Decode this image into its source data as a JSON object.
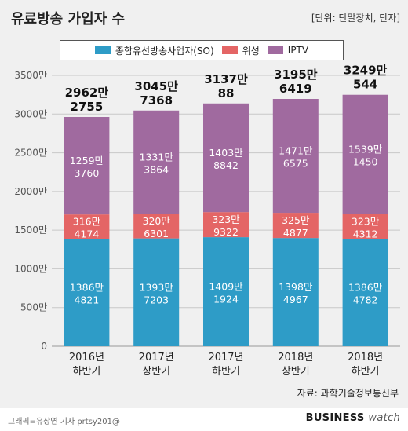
{
  "header": {
    "title": "유료방송 가입자 수",
    "unit": "[단위: 단말장치, 단자]"
  },
  "colors": {
    "so": "#2e9cc7",
    "satellite": "#e46565",
    "iptv": "#a06a9f",
    "grid": "#c8c8c8",
    "axis": "#999999"
  },
  "chart_data": {
    "type": "bar",
    "stacked": true,
    "categories": [
      [
        "2016년",
        "하반기"
      ],
      [
        "2017년",
        "상반기"
      ],
      [
        "2017년",
        "하반기"
      ],
      [
        "2018년",
        "상반기"
      ],
      [
        "2018년",
        "하반기"
      ]
    ],
    "series": [
      {
        "name": "종합유선방송사업자(SO)",
        "values": [
          13864821,
          13937203,
          14091924,
          13984967,
          13864782
        ],
        "labels": [
          [
            "1386만",
            "4821"
          ],
          [
            "1393만",
            "7203"
          ],
          [
            "1409만",
            "1924"
          ],
          [
            "1398만",
            "4967"
          ],
          [
            "1386만",
            "4782"
          ]
        ]
      },
      {
        "name": "위성",
        "values": [
          3164174,
          3206301,
          3239322,
          3254877,
          3234312
        ],
        "labels": [
          [
            "316만",
            "4174"
          ],
          [
            "320만",
            "6301"
          ],
          [
            "323만",
            "9322"
          ],
          [
            "325만",
            "4877"
          ],
          [
            "323만",
            "4312"
          ]
        ]
      },
      {
        "name": "IPTV",
        "values": [
          12593760,
          13313864,
          14038842,
          14716575,
          15391450
        ],
        "labels": [
          [
            "1259만",
            "3760"
          ],
          [
            "1331만",
            "3864"
          ],
          [
            "1403만",
            "8842"
          ],
          [
            "1471만",
            "6575"
          ],
          [
            "1539만",
            "1450"
          ]
        ]
      }
    ],
    "totals": [
      29622755,
      30457368,
      31370088,
      31956419,
      32490544
    ],
    "total_labels": [
      [
        "2962만",
        "2755"
      ],
      [
        "3045만",
        "7368"
      ],
      [
        "3137만",
        "88"
      ],
      [
        "3195만",
        "6419"
      ],
      [
        "3249만",
        "544"
      ]
    ],
    "ylim": [
      0,
      35000000
    ],
    "yticks": [
      0,
      5000000,
      10000000,
      15000000,
      20000000,
      25000000,
      30000000,
      35000000
    ],
    "ytick_labels": [
      "0",
      "500만",
      "1000만",
      "1500만",
      "2000만",
      "2500만",
      "3000만",
      "3500만"
    ],
    "grid": true,
    "legend_position": "top"
  },
  "source": "자료: 과학기술정보통신부",
  "footer": {
    "credit": "그래픽=유상연 기자 prtsy201@",
    "brand_main": "BUSINESS",
    "brand_sub": "watch"
  }
}
